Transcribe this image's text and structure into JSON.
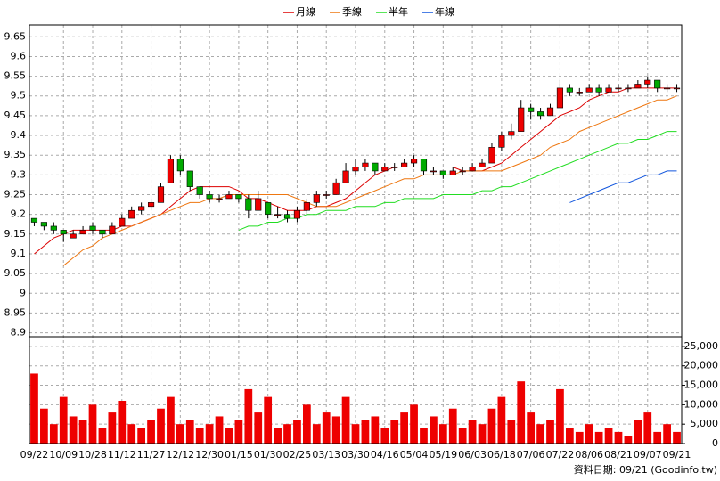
{
  "chart_data": {
    "type": "candlestick",
    "footnote": "資料日期: 09/21  (Goodinfo.tw)",
    "categories": [
      "09/22",
      null,
      null,
      "10/09",
      null,
      null,
      "10/28",
      null,
      null,
      "11/12",
      null,
      null,
      "11/27",
      null,
      null,
      "12/12",
      null,
      null,
      "12/30",
      null,
      null,
      "01/15",
      null,
      null,
      "01/30",
      null,
      null,
      "02/25",
      null,
      null,
      "03/13",
      null,
      null,
      "03/30",
      null,
      null,
      "04/16",
      null,
      null,
      "05/04",
      null,
      null,
      "05/19",
      null,
      null,
      "06/03",
      null,
      null,
      "06/18",
      null,
      null,
      "07/06",
      null,
      null,
      "07/22",
      null,
      null,
      "08/06",
      null,
      null,
      "08/21",
      null,
      null,
      "09/07",
      null,
      null,
      "09/21"
    ],
    "up_color": "#ee0000",
    "down_color": "#00aa00",
    "candles": [
      [
        9.19,
        9.19,
        9.17,
        9.18
      ],
      [
        9.18,
        9.18,
        9.16,
        9.17
      ],
      [
        9.17,
        9.18,
        9.15,
        9.16
      ],
      [
        9.16,
        9.16,
        9.13,
        9.15
      ],
      [
        9.14,
        9.16,
        9.14,
        9.15
      ],
      [
        9.15,
        9.17,
        9.15,
        9.16
      ],
      [
        9.17,
        9.18,
        9.15,
        9.16
      ],
      [
        9.16,
        9.16,
        9.14,
        9.15
      ],
      [
        9.15,
        9.18,
        9.15,
        9.17
      ],
      [
        9.17,
        9.2,
        9.17,
        9.19
      ],
      [
        9.19,
        9.22,
        9.19,
        9.21
      ],
      [
        9.21,
        9.23,
        9.2,
        9.22
      ],
      [
        9.22,
        9.24,
        9.21,
        9.23
      ],
      [
        9.23,
        9.28,
        9.23,
        9.27
      ],
      [
        9.28,
        9.35,
        9.28,
        9.34
      ],
      [
        9.34,
        9.35,
        9.3,
        9.31
      ],
      [
        9.31,
        9.31,
        9.26,
        9.27
      ],
      [
        9.27,
        9.27,
        9.24,
        9.25
      ],
      [
        9.25,
        9.26,
        9.23,
        9.24
      ],
      [
        9.24,
        9.25,
        9.23,
        9.24
      ],
      [
        9.24,
        9.26,
        9.24,
        9.25
      ],
      [
        9.25,
        9.25,
        9.23,
        9.24
      ],
      [
        9.24,
        9.25,
        9.19,
        9.21
      ],
      [
        9.21,
        9.26,
        9.21,
        9.24
      ],
      [
        9.23,
        9.23,
        9.19,
        9.2
      ],
      [
        9.2,
        9.22,
        9.19,
        9.2
      ],
      [
        9.2,
        9.21,
        9.18,
        9.19
      ],
      [
        9.19,
        9.22,
        9.18,
        9.21
      ],
      [
        9.21,
        9.24,
        9.2,
        9.23
      ],
      [
        9.23,
        9.26,
        9.22,
        9.25
      ],
      [
        9.25,
        9.26,
        9.24,
        9.25
      ],
      [
        9.25,
        9.29,
        9.25,
        9.28
      ],
      [
        9.28,
        9.33,
        9.28,
        9.31
      ],
      [
        9.31,
        9.34,
        9.3,
        9.32
      ],
      [
        9.32,
        9.34,
        9.31,
        9.33
      ],
      [
        9.33,
        9.33,
        9.3,
        9.31
      ],
      [
        9.31,
        9.33,
        9.31,
        9.32
      ],
      [
        9.32,
        9.33,
        9.31,
        9.32
      ],
      [
        9.32,
        9.34,
        9.32,
        9.33
      ],
      [
        9.33,
        9.35,
        9.32,
        9.34
      ],
      [
        9.34,
        9.34,
        9.3,
        9.31
      ],
      [
        9.31,
        9.32,
        9.3,
        9.31
      ],
      [
        9.31,
        9.31,
        9.29,
        9.3
      ],
      [
        9.3,
        9.32,
        9.3,
        9.31
      ],
      [
        9.31,
        9.32,
        9.3,
        9.31
      ],
      [
        9.31,
        9.33,
        9.31,
        9.32
      ],
      [
        9.32,
        9.34,
        9.32,
        9.33
      ],
      [
        9.33,
        9.38,
        9.33,
        9.37
      ],
      [
        9.37,
        9.41,
        9.36,
        9.4
      ],
      [
        9.4,
        9.43,
        9.39,
        9.41
      ],
      [
        9.41,
        9.49,
        9.41,
        9.47
      ],
      [
        9.47,
        9.48,
        9.44,
        9.46
      ],
      [
        9.46,
        9.47,
        9.44,
        9.45
      ],
      [
        9.45,
        9.48,
        9.45,
        9.47
      ],
      [
        9.47,
        9.54,
        9.47,
        9.52
      ],
      [
        9.52,
        9.53,
        9.5,
        9.51
      ],
      [
        9.51,
        9.52,
        9.5,
        9.51
      ],
      [
        9.51,
        9.53,
        9.51,
        9.52
      ],
      [
        9.52,
        9.53,
        9.5,
        9.51
      ],
      [
        9.51,
        9.53,
        9.51,
        9.52
      ],
      [
        9.52,
        9.53,
        9.51,
        9.52
      ],
      [
        9.52,
        9.53,
        9.51,
        9.52
      ],
      [
        9.52,
        9.54,
        9.52,
        9.53
      ],
      [
        9.53,
        9.55,
        9.52,
        9.54
      ],
      [
        9.54,
        9.54,
        9.51,
        9.52
      ],
      [
        9.52,
        9.53,
        9.51,
        9.52
      ],
      [
        9.52,
        9.53,
        9.51,
        9.52
      ]
    ],
    "series": [
      {
        "name": "月線",
        "color": "#dd0000",
        "values": [
          9.1,
          9.12,
          9.14,
          9.15,
          9.16,
          9.16,
          9.16,
          9.16,
          9.16,
          9.17,
          9.17,
          9.18,
          9.19,
          9.2,
          9.22,
          9.24,
          9.26,
          9.27,
          9.27,
          9.27,
          9.27,
          9.26,
          9.24,
          9.24,
          9.23,
          9.22,
          9.21,
          9.21,
          9.21,
          9.22,
          9.22,
          9.23,
          9.24,
          9.26,
          9.28,
          9.3,
          9.31,
          9.32,
          9.32,
          9.32,
          9.32,
          9.32,
          9.32,
          9.32,
          9.31,
          9.31,
          9.31,
          9.32,
          9.33,
          9.35,
          9.37,
          9.39,
          9.41,
          9.43,
          9.45,
          9.46,
          9.47,
          9.49,
          9.5,
          9.51,
          9.51,
          9.52,
          9.52,
          9.52,
          9.52,
          9.52,
          9.52
        ]
      },
      {
        "name": "季線",
        "color": "#ee7711",
        "values": [
          null,
          null,
          null,
          9.07,
          9.09,
          9.11,
          9.12,
          9.14,
          9.15,
          9.16,
          9.17,
          9.18,
          9.19,
          9.2,
          9.21,
          9.22,
          9.23,
          9.23,
          9.24,
          9.24,
          9.25,
          9.25,
          9.25,
          9.25,
          9.25,
          9.25,
          9.25,
          9.24,
          9.23,
          9.22,
          9.22,
          9.22,
          9.23,
          9.24,
          9.25,
          9.26,
          9.27,
          9.28,
          9.29,
          9.29,
          9.3,
          9.3,
          9.3,
          9.3,
          9.31,
          9.31,
          9.31,
          9.31,
          9.31,
          9.32,
          9.33,
          9.34,
          9.35,
          9.37,
          9.38,
          9.39,
          9.41,
          9.42,
          9.43,
          9.44,
          9.45,
          9.46,
          9.47,
          9.48,
          9.49,
          9.49,
          9.5
        ]
      },
      {
        "name": "半年",
        "color": "#22dd22",
        "values": [
          null,
          null,
          null,
          null,
          null,
          null,
          null,
          null,
          null,
          null,
          null,
          null,
          null,
          null,
          null,
          null,
          null,
          null,
          null,
          null,
          null,
          9.16,
          9.17,
          9.17,
          9.18,
          9.18,
          9.19,
          9.19,
          9.2,
          9.2,
          9.21,
          9.21,
          9.21,
          9.22,
          9.22,
          9.22,
          9.23,
          9.23,
          9.24,
          9.24,
          9.24,
          9.24,
          9.25,
          9.25,
          9.25,
          9.25,
          9.26,
          9.26,
          9.27,
          9.27,
          9.28,
          9.29,
          9.3,
          9.31,
          9.32,
          9.33,
          9.34,
          9.35,
          9.36,
          9.37,
          9.38,
          9.38,
          9.39,
          9.39,
          9.4,
          9.41,
          9.41
        ]
      },
      {
        "name": "年線",
        "color": "#1155dd",
        "values": [
          null,
          null,
          null,
          null,
          null,
          null,
          null,
          null,
          null,
          null,
          null,
          null,
          null,
          null,
          null,
          null,
          null,
          null,
          null,
          null,
          null,
          null,
          null,
          null,
          null,
          null,
          null,
          null,
          null,
          null,
          null,
          null,
          null,
          null,
          null,
          null,
          null,
          null,
          null,
          null,
          null,
          null,
          null,
          null,
          null,
          null,
          null,
          null,
          null,
          null,
          null,
          null,
          null,
          null,
          null,
          9.23,
          9.24,
          9.25,
          9.26,
          9.27,
          9.28,
          9.28,
          9.29,
          9.3,
          9.3,
          9.31,
          9.31
        ]
      }
    ],
    "ylim": [
      8.89,
      9.68
    ],
    "yticks": [
      8.9,
      8.95,
      9,
      9.05,
      9.1,
      9.15,
      9.2,
      9.25,
      9.3,
      9.35,
      9.4,
      9.45,
      9.5,
      9.55,
      9.6,
      9.65
    ],
    "volume": {
      "color": "#ee0000",
      "values": [
        18000,
        9000,
        5000,
        12000,
        7000,
        6000,
        10000,
        4000,
        8000,
        11000,
        5000,
        4000,
        6000,
        9000,
        12000,
        5000,
        6000,
        4000,
        5000,
        7000,
        4000,
        6000,
        14000,
        8000,
        12000,
        4000,
        5000,
        6000,
        10000,
        5000,
        8000,
        7000,
        12000,
        5000,
        6000,
        7000,
        4000,
        6000,
        8000,
        10000,
        4000,
        7000,
        5000,
        9000,
        4000,
        6000,
        5000,
        9000,
        12000,
        6000,
        16000,
        8000,
        5000,
        6000,
        14000,
        4000,
        3000,
        5000,
        3000,
        4000,
        3000,
        2000,
        6000,
        8000,
        3000,
        5000,
        3000
      ],
      "ylim": [
        0,
        27500
      ],
      "yticks": [
        0,
        {
          "value": 5000,
          "label": "5,000"
        },
        {
          "value": 10000,
          "label": "10,000"
        },
        {
          "value": 15000,
          "label": "15,000"
        },
        {
          "value": 20000,
          "label": "20,000"
        },
        {
          "value": 25000,
          "label": "25,000"
        }
      ]
    },
    "grid": true
  }
}
